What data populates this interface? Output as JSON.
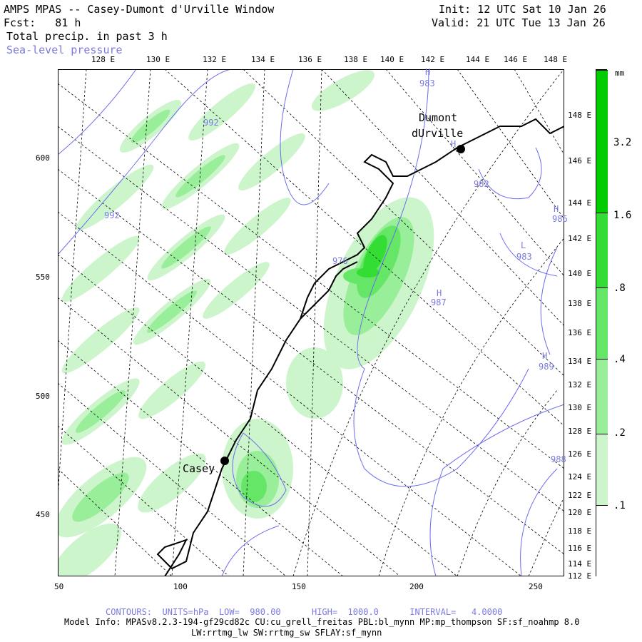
{
  "header": {
    "line1_left": "AMPS MPAS -- Casey-Dumont d'Urville Window",
    "line2_left": "Fcst:   81 h",
    "line3_left": "Total precip. in past 3 h",
    "line4_left": "Sea-level pressure",
    "line1_right": "Init: 12 UTC Sat 10 Jan 26",
    "line2_right": "Valid: 21 UTC Tue 13 Jan 26"
  },
  "top_lon_labels": [
    "128 E",
    "130 E",
    "132 E",
    "134 E",
    "136 E",
    "138 E",
    "140 E",
    "142 E",
    "144 E",
    "146 E",
    "148 E"
  ],
  "right_lon_labels": [
    "148 E",
    "146 E",
    "144 E",
    "142 E",
    "140 E",
    "138 E",
    "136 E",
    "134 E",
    "132 E",
    "130 E",
    "128 E",
    "126 E",
    "124 E",
    "122 E",
    "120 E",
    "118 E",
    "116 E",
    "114 E",
    "112 E"
  ],
  "bottom_axis": [
    "50",
    "100",
    "150",
    "200",
    "250"
  ],
  "left_axis": [
    "600",
    "550",
    "500",
    "450"
  ],
  "places": {
    "dumont_line1": "Dumont",
    "dumont_line2": "dUrville",
    "casey": "Casey"
  },
  "pressure_labels": [
    "983",
    "992",
    "992",
    "982",
    "986",
    "983",
    "987",
    "989",
    "988",
    "976",
    "L",
    "H",
    "H",
    "H",
    "H",
    "H"
  ],
  "legend": {
    "unit": "mm",
    "values": [
      "3.2",
      "1.6",
      ".8",
      ".4",
      ".2",
      ".1"
    ],
    "colors": [
      "#00cc00",
      "#33dd33",
      "#66e666",
      "#99ee99",
      "#ccf5cc",
      "#ffffff"
    ]
  },
  "footer": {
    "contours": "CONTOURS:  UNITS=hPa  LOW=  980.00      HIGH=  1000.0      INTERVAL=   4.0000",
    "model1": "Model Info: MPASv8.2.3-194-gf29cd82c CU:cu_grell_freitas PBL:bl_mynn MP:mp_thompson SF:sf_noahmp 8.0",
    "model2": "LW:rrtmg_lw SW:rrtmg_sw SFLAY:sf_mynn"
  }
}
